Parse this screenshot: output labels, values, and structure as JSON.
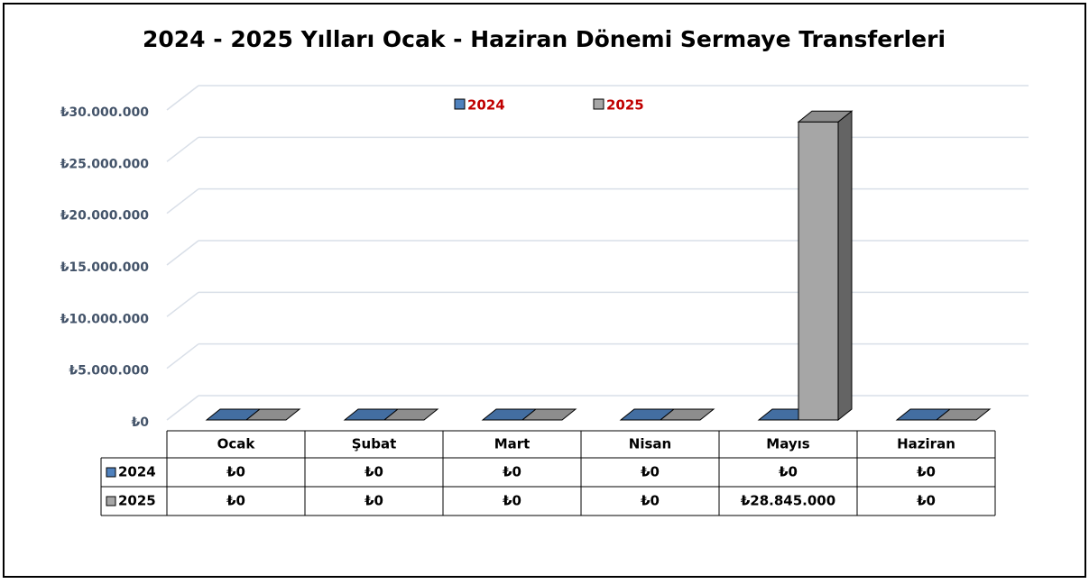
{
  "chart_data": {
    "type": "bar3d",
    "title": "2024 - 2025 Yılları Ocak - Haziran Dönemi Sermaye Transferleri",
    "categories": [
      "Ocak",
      "Şubat",
      "Mart",
      "Nisan",
      "Mayıs",
      "Haziran"
    ],
    "series": [
      {
        "name": "2024",
        "color": "#4f81bd",
        "values": [
          0,
          0,
          0,
          0,
          0,
          0
        ],
        "value_labels": [
          "₺0",
          "₺0",
          "₺0",
          "₺0",
          "₺0",
          "₺0"
        ]
      },
      {
        "name": "2025",
        "color": "#a6a6a6",
        "values": [
          0,
          0,
          0,
          0,
          28845000,
          0
        ],
        "value_labels": [
          "₺0",
          "₺0",
          "₺0",
          "₺0",
          "₺28.845.000",
          "₺0"
        ]
      }
    ],
    "ylim": [
      0,
      30000000
    ],
    "yticks": [
      {
        "value": 0,
        "label": "₺0"
      },
      {
        "value": 5000000,
        "label": "₺5.000.000"
      },
      {
        "value": 10000000,
        "label": "₺10.000.000"
      },
      {
        "value": 15000000,
        "label": "₺15.000.000"
      },
      {
        "value": 20000000,
        "label": "₺20.000.000"
      },
      {
        "value": 25000000,
        "label": "₺25.000.000"
      },
      {
        "value": 30000000,
        "label": "₺30.000.000"
      }
    ],
    "grid": true,
    "legend": "top"
  }
}
